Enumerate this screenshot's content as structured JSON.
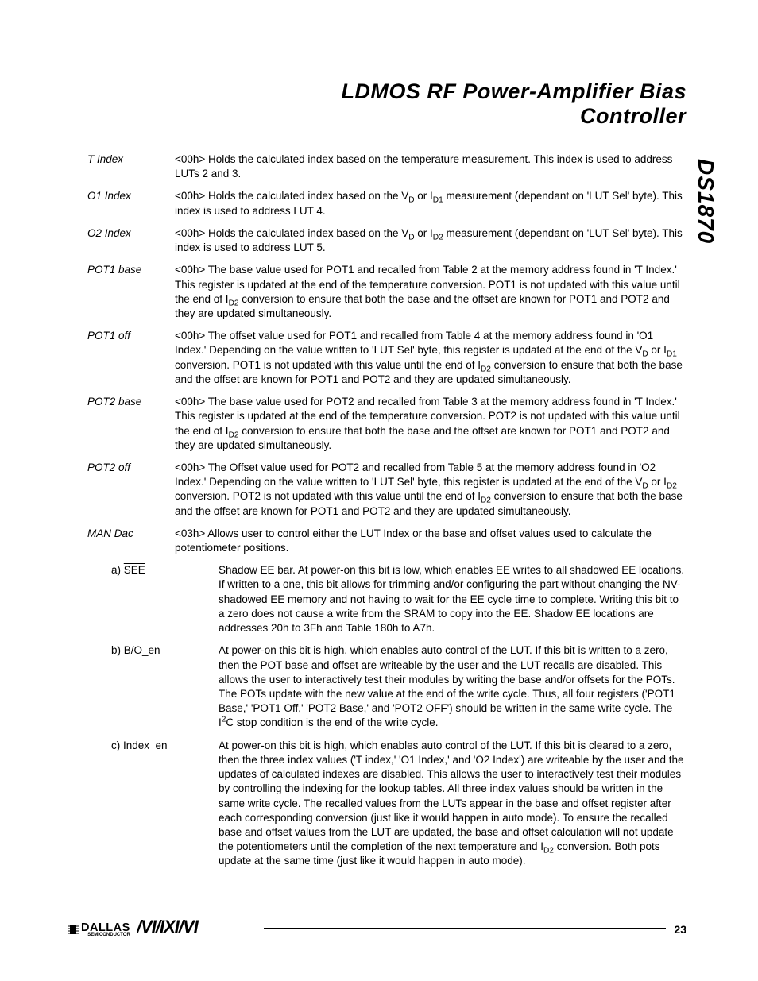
{
  "title_line1": "LDMOS RF Power-Amplifier Bias",
  "title_line2": "Controller",
  "side_label": "DS1870",
  "entries": [
    {
      "label": "T Index",
      "desc": "<R><NA><00h> Holds the calculated index based on the temperature measurement. This index is used to address LUTs 2 and 3."
    },
    {
      "label": "O1 Index",
      "desc": "<R><NA><00h> Holds the calculated index based on the V<sub>D</sub> or I<sub>D1</sub> measurement (dependant on 'LUT Sel' byte). This index is used to address LUT 4."
    },
    {
      "label": "O2 Index",
      "desc": "<R><NA><00h> Holds the calculated index based on the V<sub>D</sub> or I<sub>D2</sub> measurement (dependant on 'LUT Sel' byte). This index is used to address LUT 5."
    },
    {
      "label": "POT1 base",
      "desc": "<R><NA><00h> The base value used for POT1 and recalled from Table 2 at the memory address found in 'T Index.' This register is updated at the end of the temperature conversion. POT1 is not updated with this value until the end of I<sub>D2</sub> conversion to ensure that both the base and the offset are known for POT1 and POT2 and they are updated simultaneously."
    },
    {
      "label": "POT1 off",
      "desc": "<R><NA><00h> The offset value used for POT1 and recalled from Table 4 at the memory address found in 'O1 Index.' Depending on the value written to 'LUT Sel' byte, this register is updated at the end of the V<sub>D</sub> or I<sub>D1</sub> conversion. POT1 is not updated with this value until the end of I<sub>D2</sub> conversion to ensure that both the base and the offset are known for POT1 and POT2 and they are updated simultaneously."
    },
    {
      "label": "POT2 base",
      "desc": "<R><NA><00h> The base value used for POT2 and recalled from Table 3 at the memory address found in 'T Index.' This register is updated at the end of the temperature conversion. POT2 is not updated with this value until the end of I<sub>D2</sub> conversion to ensure that both the base and the offset are known for POT1 and POT2 and they are updated simultaneously."
    },
    {
      "label": "POT2 off",
      "desc": "<R><NA><00h> The Offset value used for POT2 and recalled from Table 5 at the memory address found in 'O2 Index.' Depending on the value written to 'LUT Sel' byte, this register is updated at the end of the V<sub>D</sub> or I<sub>D2</sub> conversion. POT2 is not updated with this value until the end of I<sub>D2</sub> conversion to ensure that both the base and the offset are known for POT1 and POT2 and they are updated simultaneously."
    },
    {
      "label": "MAN Dac",
      "desc": "<R/W><NA><03h> Allows user to control either the LUT Index or the base and offset values used to calculate the potentiometer positions."
    }
  ],
  "sub_entries": [
    {
      "label": "a) <span class=\"overline\">SEE</span>",
      "desc": "Shadow EE bar. At power-on this bit is low, which enables EE writes to all shadowed EE locations. If written to a one, this bit allows for trimming and/or configuring the part without changing the NV-shadowed EE memory and not having to wait for the EE cycle time to complete. Writing this bit to a zero does not cause a write from the SRAM to copy into the EE. Shadow EE locations are addresses 20h to 3Fh and Table 180h to A7h."
    },
    {
      "label": "b) B/O_en",
      "desc": "At power-on this bit is high, which enables auto control of the LUT. If this bit is written to a zero, then the POT base and offset are writeable by the user and the LUT recalls are disabled. This allows the user to interactively test their modules by writing the base and/or offsets for the POTs. The POTs update with the new value at the end of the write cycle. Thus, all four registers ('POT1 Base,' 'POT1 Off,' 'POT2 Base,' and 'POT2 OFF') should be written in the same write cycle. The I<sup>2</sup>C stop condition is the end of the write cycle."
    },
    {
      "label": "c) Index_en",
      "desc": "At power-on this bit is high, which enables auto control of the LUT. If this bit is cleared to a zero, then the three index values ('T index,' 'O1 Index,' and 'O2 Index') are writeable by the user and the updates of calculated indexes are disabled. This allows the user to interactively test their  modules by controlling the indexing for the lookup tables. All three index values should be written in the same write cycle. The recalled values from the LUTs appear in the base and offset register after each corresponding conversion (just like it would happen in auto mode). To ensure the recalled base and offset values from the LUT are updated, the base and offset calculation will not update the potentiometers until the completion of the next temperature and I<sub>D2</sub> conversion. Both pots update at the same time (just like it would happen in auto mode)."
    }
  ],
  "footer": {
    "dallas": "DALLAS",
    "dallas_sub": "SEMICONDUCTOR",
    "maxim": "MAXIM",
    "page": "23"
  }
}
